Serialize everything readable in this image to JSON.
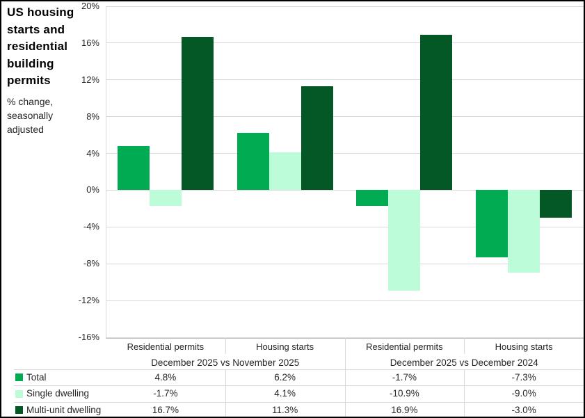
{
  "figure": {
    "title": "US housing starts and residential building permits",
    "subtitle": "% change, seasonally adjusted"
  },
  "chart_data": {
    "type": "bar",
    "title": "US housing starts and residential building permits",
    "subtitle": "% change, seasonally adjusted",
    "categories": [
      "Residential permits",
      "Housing starts",
      "Residential permits",
      "Housing starts"
    ],
    "comparison_groups": [
      {
        "label": "December 2025 vs November 2025",
        "category_span": [
          0,
          2
        ]
      },
      {
        "label": "December 2025 vs December 2024",
        "category_span": [
          2,
          4
        ]
      }
    ],
    "series": [
      {
        "name": "Total",
        "color": "#00AB52",
        "values": [
          4.8,
          6.2,
          -1.7,
          -7.3
        ],
        "value_labels": [
          "4.8%",
          "6.2%",
          "-1.7%",
          "-7.3%"
        ]
      },
      {
        "name": "Single dwelling",
        "color": "#BDFCD9",
        "values": [
          -1.7,
          4.1,
          -10.9,
          -9.0
        ],
        "value_labels": [
          "-1.7%",
          "4.1%",
          "-10.9%",
          "-9.0%"
        ]
      },
      {
        "name": "Multi-unit dwelling",
        "color": "#045826",
        "values": [
          16.7,
          11.3,
          16.9,
          -3.0
        ],
        "value_labels": [
          "16.7%",
          "11.3%",
          "16.9%",
          "-3.0%"
        ]
      }
    ],
    "y_axis": {
      "min": -16,
      "max": 20,
      "step": 4,
      "tick_values": [
        20,
        16,
        12,
        8,
        4,
        0,
        -4,
        -8,
        -12,
        -16
      ],
      "tick_labels": [
        "20%",
        "16%",
        "12%",
        "8%",
        "4%",
        "0%",
        "-4%",
        "-8%",
        "-12%",
        "-16%"
      ]
    },
    "grid": true,
    "legend_position": "data-table-left",
    "colors": {
      "gridline": "#D9D9D9",
      "axis_line": "#BFBFBF",
      "table_line": "#D9D9D9",
      "text": "#262626",
      "title_text": "#000000",
      "outer_border": "#000000",
      "background": "#FFFFFF"
    }
  }
}
